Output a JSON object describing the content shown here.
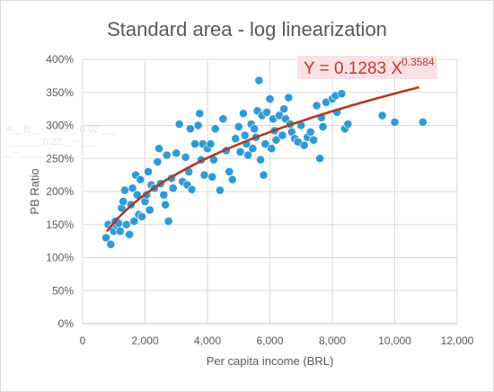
{
  "chart_data": {
    "type": "scatter",
    "title": "Standard area - log linearization",
    "xlabel": "Per capita income (BRL)",
    "ylabel": "PB Ratio",
    "xlim": [
      0,
      12000
    ],
    "ylim": [
      0,
      4.0
    ],
    "x_ticks": [
      0,
      2000,
      4000,
      6000,
      8000,
      10000,
      12000
    ],
    "x_tick_labels": [
      "0",
      "2,000",
      "4,000",
      "6,000",
      "8,000",
      "10,000",
      "12,000"
    ],
    "y_ticks": [
      0,
      0.5,
      1.0,
      1.5,
      2.0,
      2.5,
      3.0,
      3.5,
      4.0
    ],
    "y_tick_labels": [
      "0%",
      "50%",
      "100%",
      "150%",
      "200%",
      "250%",
      "300%",
      "350%",
      "400%"
    ],
    "grid": true,
    "marker_color": "#2e9bd6",
    "trendline_color": "#b03a1e",
    "trendline": {
      "type": "power",
      "coefficient": 0.1283,
      "exponent": 0.3584,
      "label_main": "Y = 0.1283 X",
      "label_exp": "0.3584",
      "label_color": "#c0392b",
      "label_bg": "#fbe1e6"
    },
    "points": [
      [
        750,
        1.3
      ],
      [
        820,
        1.5
      ],
      [
        900,
        1.2
      ],
      [
        950,
        1.45
      ],
      [
        1000,
        1.4
      ],
      [
        1050,
        1.55
      ],
      [
        1100,
        1.48
      ],
      [
        1150,
        1.52
      ],
      [
        1200,
        1.4
      ],
      [
        1250,
        1.75
      ],
      [
        1300,
        1.85
      ],
      [
        1350,
        2.02
      ],
      [
        1400,
        1.5
      ],
      [
        1500,
        1.35
      ],
      [
        1550,
        1.8
      ],
      [
        1600,
        2.05
      ],
      [
        1650,
        1.55
      ],
      [
        1700,
        2.25
      ],
      [
        1750,
        1.95
      ],
      [
        1800,
        1.65
      ],
      [
        1850,
        2.18
      ],
      [
        1900,
        1.62
      ],
      [
        2000,
        1.85
      ],
      [
        2050,
        1.95
      ],
      [
        2100,
        2.3
      ],
      [
        2150,
        1.72
      ],
      [
        2200,
        2.1
      ],
      [
        2300,
        2.05
      ],
      [
        2400,
        2.45
      ],
      [
        2450,
        2.65
      ],
      [
        2500,
        2.12
      ],
      [
        2600,
        1.95
      ],
      [
        2650,
        1.8
      ],
      [
        2700,
        2.55
      ],
      [
        2750,
        1.55
      ],
      [
        2850,
        2.2
      ],
      [
        2900,
        2.05
      ],
      [
        3000,
        2.58
      ],
      [
        3100,
        3.02
      ],
      [
        3200,
        2.15
      ],
      [
        3300,
        2.52
      ],
      [
        3350,
        2.1
      ],
      [
        3400,
        2.3
      ],
      [
        3450,
        2.95
      ],
      [
        3500,
        2.03
      ],
      [
        3600,
        2.72
      ],
      [
        3700,
        3.0
      ],
      [
        3750,
        3.18
      ],
      [
        3800,
        2.48
      ],
      [
        3850,
        2.72
      ],
      [
        3900,
        2.25
      ],
      [
        4000,
        2.65
      ],
      [
        4100,
        2.72
      ],
      [
        4150,
        2.22
      ],
      [
        4200,
        2.48
      ],
      [
        4250,
        2.95
      ],
      [
        4400,
        2.02
      ],
      [
        4500,
        3.1
      ],
      [
        4600,
        2.62
      ],
      [
        4700,
        2.3
      ],
      [
        4800,
        2.18
      ],
      [
        4900,
        2.8
      ],
      [
        5000,
        2.98
      ],
      [
        5050,
        2.6
      ],
      [
        5150,
        3.18
      ],
      [
        5200,
        2.85
      ],
      [
        5250,
        2.72
      ],
      [
        5300,
        2.55
      ],
      [
        5400,
        3.02
      ],
      [
        5450,
        2.65
      ],
      [
        5500,
        2.95
      ],
      [
        5550,
        2.82
      ],
      [
        5600,
        3.22
      ],
      [
        5650,
        3.68
      ],
      [
        5700,
        2.48
      ],
      [
        5750,
        3.15
      ],
      [
        5800,
        2.25
      ],
      [
        5850,
        2.72
      ],
      [
        5900,
        3.2
      ],
      [
        6000,
        3.4
      ],
      [
        6050,
        2.65
      ],
      [
        6100,
        3.1
      ],
      [
        6150,
        2.92
      ],
      [
        6200,
        2.78
      ],
      [
        6300,
        3.15
      ],
      [
        6400,
        2.85
      ],
      [
        6450,
        3.25
      ],
      [
        6500,
        3.1
      ],
      [
        6600,
        3.42
      ],
      [
        6650,
        3.02
      ],
      [
        6700,
        2.9
      ],
      [
        6800,
        2.8
      ],
      [
        6900,
        2.75
      ],
      [
        7000,
        3.0
      ],
      [
        7100,
        2.7
      ],
      [
        7200,
        2.82
      ],
      [
        7300,
        2.9
      ],
      [
        7400,
        2.78
      ],
      [
        7500,
        3.3
      ],
      [
        7600,
        2.5
      ],
      [
        7650,
        3.12
      ],
      [
        7700,
        2.98
      ],
      [
        7800,
        3.35
      ],
      [
        8000,
        3.4
      ],
      [
        8100,
        3.45
      ],
      [
        8150,
        3.2
      ],
      [
        8300,
        3.48
      ],
      [
        8400,
        2.95
      ],
      [
        8500,
        3.02
      ],
      [
        9600,
        3.15
      ],
      [
        10000,
        3.05
      ],
      [
        10900,
        3.05
      ]
    ]
  }
}
